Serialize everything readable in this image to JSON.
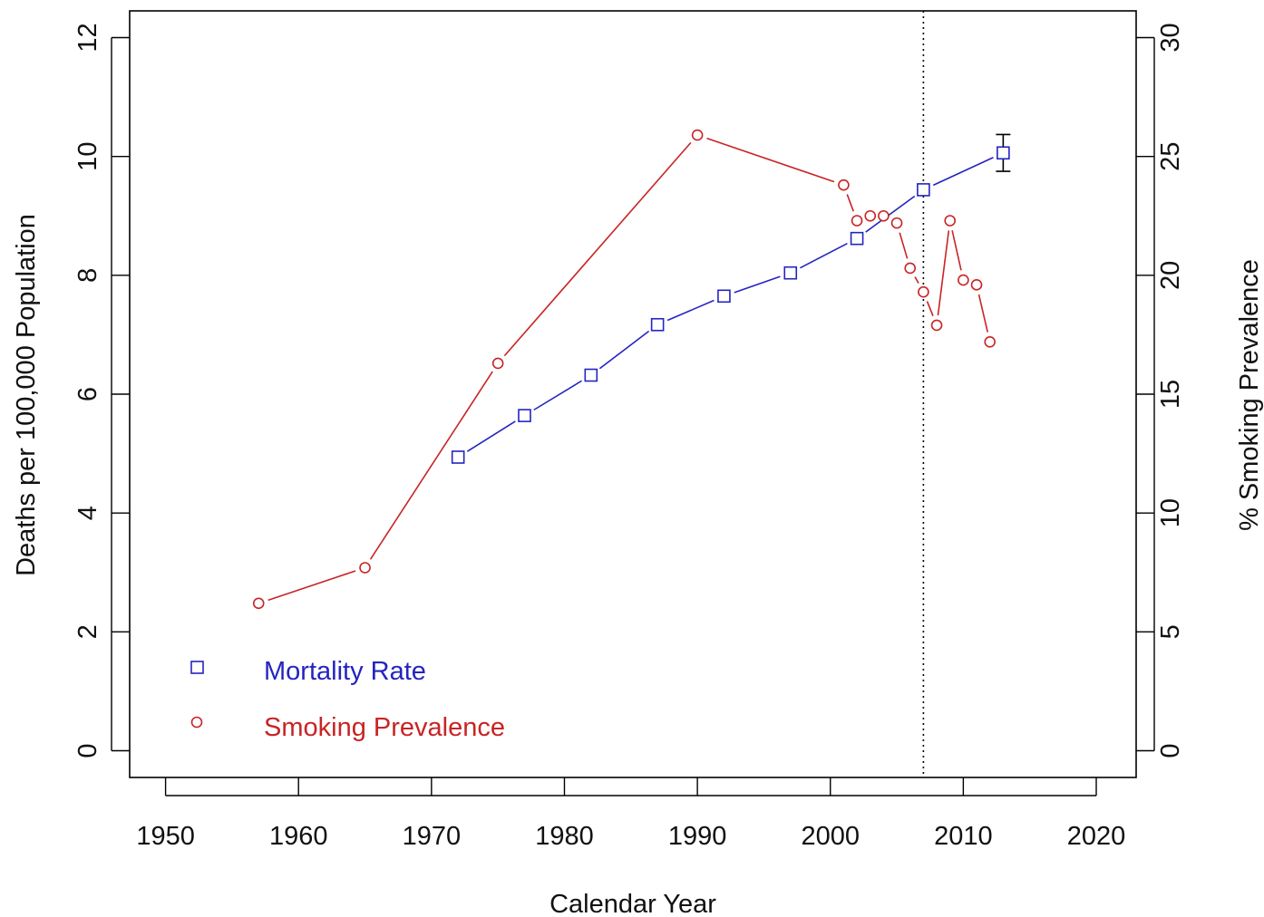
{
  "chart_data": {
    "type": "line",
    "xlabel": "Calendar Year",
    "ylabel_left": "Deaths per 100,000 Population",
    "ylabel_right": "% Smoking Prevalence",
    "xlim": [
      1947.3,
      2023.0
    ],
    "ylim_left": [
      -0.45,
      12.45
    ],
    "ylim_right": [
      -1.125,
      31.125
    ],
    "x_ticks": [
      "1950",
      "1960",
      "1970",
      "1980",
      "1990",
      "2000",
      "2010",
      "2020"
    ],
    "y_left_ticks": [
      "0",
      "2",
      "4",
      "6",
      "8",
      "10",
      "12"
    ],
    "y_right_ticks": [
      "0",
      "5",
      "10",
      "15",
      "20",
      "25",
      "30"
    ],
    "reference_line_x": 2007,
    "grid": false,
    "legend_position": "bottom-left",
    "series": [
      {
        "name": "Mortality Rate",
        "axis": "left",
        "marker": "square",
        "color": "#2424c0",
        "x": [
          1972,
          1977,
          1982,
          1987,
          1992,
          1997,
          2002,
          2007,
          2013
        ],
        "y": [
          4.94,
          5.64,
          6.32,
          7.17,
          7.65,
          8.04,
          8.62,
          9.44,
          10.06
        ],
        "error_bar": {
          "x": 2013,
          "low": 9.75,
          "high": 10.37
        }
      },
      {
        "name": "Smoking Prevalence",
        "axis": "right",
        "marker": "circle",
        "color": "#c82424",
        "x": [
          1957,
          1965,
          1975,
          1990,
          2001,
          2002,
          2003,
          2004,
          2005,
          2006,
          2007,
          2008,
          2009,
          2010,
          2011,
          2012
        ],
        "y": [
          6.2,
          7.7,
          16.3,
          25.9,
          23.8,
          22.3,
          22.5,
          22.5,
          22.2,
          20.3,
          19.3,
          17.9,
          22.3,
          19.8,
          19.6,
          17.2
        ]
      }
    ]
  },
  "legend": {
    "mortality_label": "Mortality Rate",
    "smoking_label": "Smoking Prevalence"
  }
}
